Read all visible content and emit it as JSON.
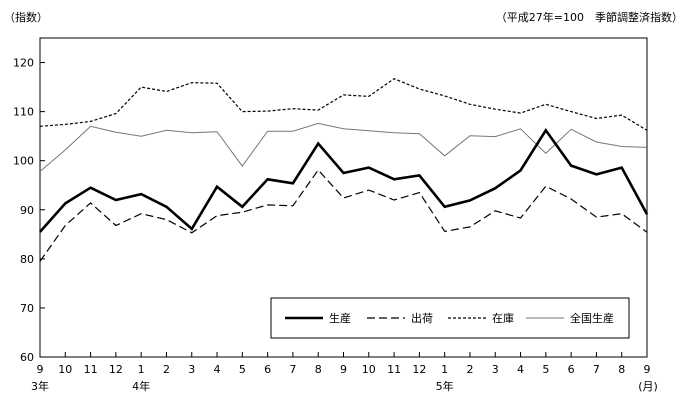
{
  "chart_data": {
    "type": "line",
    "ylabel": "（指数）",
    "note": "（平成27年=100　季節調整済指数）",
    "unit_label": "(月)",
    "ylim": [
      60,
      125
    ],
    "yticks": [
      60,
      70,
      80,
      90,
      100,
      110,
      120
    ],
    "categories": [
      "9",
      "10",
      "11",
      "12",
      "1",
      "2",
      "3",
      "4",
      "5",
      "6",
      "7",
      "8",
      "9",
      "10",
      "11",
      "12",
      "1",
      "2",
      "3",
      "4",
      "5",
      "6",
      "7",
      "8",
      "9"
    ],
    "year_labels": [
      {
        "index": 0,
        "text": "3年"
      },
      {
        "index": 4,
        "text": "4年"
      },
      {
        "index": 16,
        "text": "5年"
      }
    ],
    "series": [
      {
        "name": "生産",
        "style": "solid-bold",
        "color": "#000000",
        "values": [
          85.5,
          91.3,
          94.5,
          92.0,
          93.2,
          90.6,
          86.1,
          94.7,
          90.6,
          96.2,
          95.4,
          103.5,
          97.5,
          98.6,
          96.2,
          97.0,
          90.6,
          91.9,
          94.4,
          98.0,
          106.2,
          99.0,
          97.2,
          98.6,
          89.1
        ]
      },
      {
        "name": "出荷",
        "style": "dashed",
        "color": "#000000",
        "values": [
          79.5,
          86.8,
          91.4,
          86.8,
          89.2,
          88.0,
          85.3,
          88.8,
          89.5,
          91.0,
          90.8,
          98.1,
          92.4,
          94.0,
          92.0,
          93.5,
          85.6,
          86.5,
          89.8,
          88.3,
          94.8,
          92.2,
          88.5,
          89.2,
          85.4
        ]
      },
      {
        "name": "在庫",
        "style": "dotted",
        "color": "#000000",
        "values": [
          107.0,
          107.4,
          108.0,
          109.6,
          115.0,
          114.1,
          115.9,
          115.8,
          110.0,
          110.1,
          110.6,
          110.3,
          113.4,
          113.1,
          116.7,
          114.6,
          113.2,
          111.5,
          110.5,
          109.7,
          111.5,
          110.0,
          108.6,
          109.3,
          106.2
        ]
      },
      {
        "name": "全国生産",
        "style": "solid-thin",
        "color": "#777777",
        "values": [
          97.8,
          102.2,
          107.0,
          105.8,
          105.0,
          106.2,
          105.7,
          105.9,
          98.9,
          106.0,
          106.0,
          107.6,
          106.5,
          106.1,
          105.7,
          105.5,
          101.0,
          105.1,
          104.9,
          106.5,
          101.5,
          106.4,
          103.8,
          102.9,
          102.7
        ]
      }
    ],
    "legend_position": "bottom-right",
    "grid": false
  }
}
